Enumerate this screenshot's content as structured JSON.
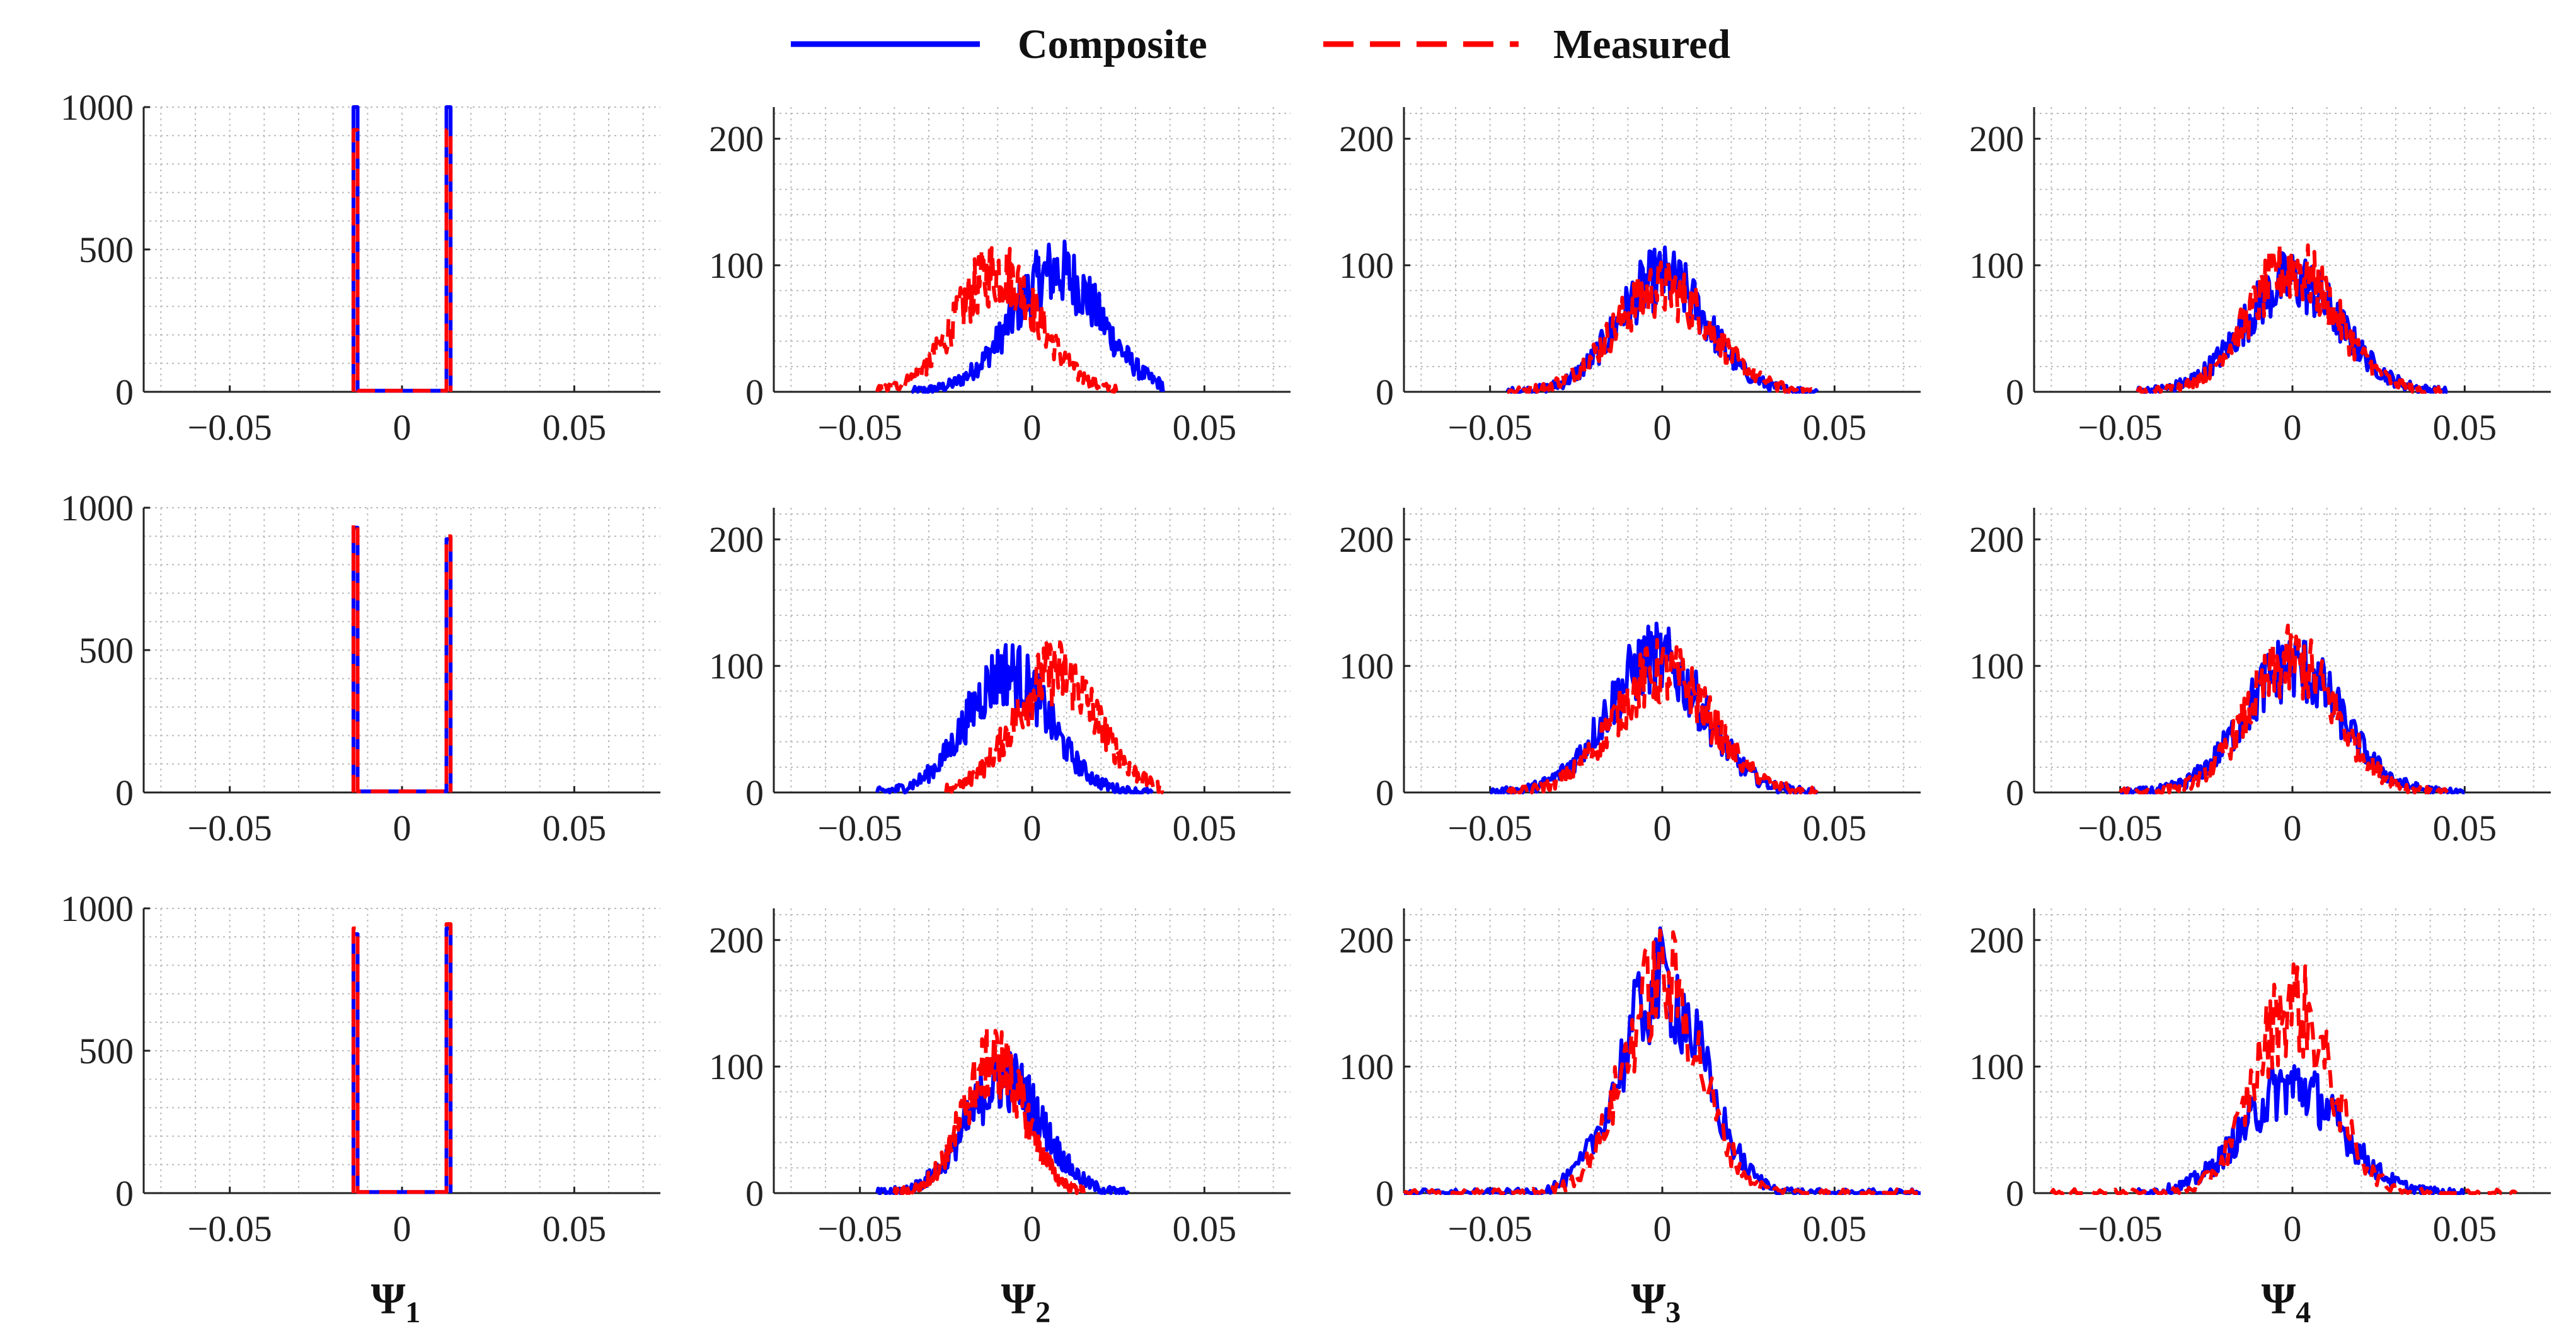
{
  "chart_data": {
    "type": "line",
    "title": "",
    "legend": {
      "placement": "top-center",
      "entries": [
        {
          "name": "Composite",
          "color": "#0000ff",
          "style": "solid"
        },
        {
          "name": "Measured",
          "color": "#ff0000",
          "style": "dashed"
        }
      ]
    },
    "grid": true,
    "xlim": [
      -0.075,
      0.075
    ],
    "xticks": [
      -0.05,
      0,
      0.05
    ],
    "xtick_labels": [
      "−0.05",
      "0",
      "0.05"
    ],
    "columns": [
      {
        "symbol": "Ψ",
        "sub": "1",
        "ylim": [
          0,
          1000
        ],
        "yticks": [
          0,
          500,
          1000
        ],
        "ytick_labels": [
          "0",
          "500",
          "1000"
        ]
      },
      {
        "symbol": "Ψ",
        "sub": "2",
        "ylim": [
          0,
          225
        ],
        "yticks": [
          0,
          100,
          200
        ],
        "ytick_labels": [
          "0",
          "100",
          "200"
        ]
      },
      {
        "symbol": "Ψ",
        "sub": "3",
        "ylim": [
          0,
          225
        ],
        "yticks": [
          0,
          100,
          200
        ],
        "ytick_labels": [
          "0",
          "100",
          "200"
        ]
      },
      {
        "symbol": "Ψ",
        "sub": "4",
        "ylim": [
          0,
          225
        ],
        "yticks": [
          0,
          100,
          200
        ],
        "ytick_labels": [
          "0",
          "100",
          "200"
        ]
      }
    ],
    "panels": [
      {
        "row": 1,
        "col": 1,
        "kind": "spikes",
        "series": [
          {
            "name": "Composite",
            "spikes": [
              [
                -0.0135,
                1000
              ],
              [
                0.0135,
                1000
              ]
            ]
          },
          {
            "name": "Measured",
            "spikes": [
              [
                -0.0135,
                920
              ],
              [
                0.0135,
                920
              ]
            ]
          }
        ]
      },
      {
        "row": 1,
        "col": 2,
        "kind": "gaussian",
        "series": [
          {
            "name": "Composite",
            "mean": 0.007,
            "sd": 0.013,
            "peak": 95,
            "range": [
              -0.035,
              0.038
            ]
          },
          {
            "name": "Measured",
            "mean": -0.01,
            "sd": 0.012,
            "peak": 95,
            "range": [
              -0.045,
              0.025
            ]
          }
        ]
      },
      {
        "row": 1,
        "col": 3,
        "kind": "gaussian",
        "series": [
          {
            "name": "Composite",
            "mean": 0.0,
            "sd": 0.013,
            "peak": 90,
            "range": [
              -0.045,
              0.045
            ]
          },
          {
            "name": "Measured",
            "mean": 0.0,
            "sd": 0.014,
            "peak": 82,
            "range": [
              -0.045,
              0.045
            ]
          }
        ]
      },
      {
        "row": 1,
        "col": 4,
        "kind": "gaussian",
        "series": [
          {
            "name": "Composite",
            "mean": 0.0,
            "sd": 0.014,
            "peak": 88,
            "range": [
              -0.045,
              0.045
            ]
          },
          {
            "name": "Measured",
            "mean": 0.0,
            "sd": 0.013,
            "peak": 97,
            "range": [
              -0.045,
              0.045
            ]
          }
        ]
      },
      {
        "row": 2,
        "col": 1,
        "kind": "spikes",
        "series": [
          {
            "name": "Composite",
            "spikes": [
              [
                -0.0135,
                930
              ],
              [
                0.0135,
                890
              ]
            ]
          },
          {
            "name": "Measured",
            "spikes": [
              [
                -0.0135,
                945
              ],
              [
                0.0135,
                900
              ]
            ]
          }
        ]
      },
      {
        "row": 2,
        "col": 2,
        "kind": "gaussian",
        "series": [
          {
            "name": "Composite",
            "mean": -0.007,
            "sd": 0.012,
            "peak": 95,
            "range": [
              -0.045,
              0.035
            ]
          },
          {
            "name": "Measured",
            "mean": 0.007,
            "sd": 0.012,
            "peak": 95,
            "range": [
              -0.025,
              0.038
            ]
          }
        ]
      },
      {
        "row": 2,
        "col": 3,
        "kind": "gaussian",
        "series": [
          {
            "name": "Composite",
            "mean": -0.002,
            "sd": 0.014,
            "peak": 105,
            "range": [
              -0.05,
              0.045
            ]
          },
          {
            "name": "Measured",
            "mean": 0.0,
            "sd": 0.014,
            "peak": 95,
            "range": [
              -0.045,
              0.045
            ]
          }
        ]
      },
      {
        "row": 2,
        "col": 4,
        "kind": "gaussian",
        "series": [
          {
            "name": "Composite",
            "mean": 0.0,
            "sd": 0.014,
            "peak": 100,
            "range": [
              -0.05,
              0.05
            ]
          },
          {
            "name": "Measured",
            "mean": 0.0,
            "sd": 0.013,
            "peak": 103,
            "range": [
              -0.05,
              0.045
            ]
          }
        ]
      },
      {
        "row": 3,
        "col": 1,
        "kind": "spikes",
        "series": [
          {
            "name": "Composite",
            "spikes": [
              [
                -0.0135,
                910
              ],
              [
                0.0135,
                930
              ]
            ]
          },
          {
            "name": "Measured",
            "spikes": [
              [
                -0.0135,
                930
              ],
              [
                0.0135,
                945
              ]
            ]
          }
        ]
      },
      {
        "row": 3,
        "col": 2,
        "kind": "gaussian",
        "series": [
          {
            "name": "Composite",
            "mean": -0.008,
            "sd": 0.011,
            "peak": 90,
            "range": [
              -0.045,
              0.028
            ]
          },
          {
            "name": "Measured",
            "mean": -0.011,
            "sd": 0.009,
            "peak": 105,
            "range": [
              -0.04,
              0.015
            ]
          }
        ]
      },
      {
        "row": 3,
        "col": 3,
        "kind": "gaussian",
        "series": [
          {
            "name": "Composite",
            "mean": 0.0,
            "sd": 0.012,
            "peak": 165,
            "range": [
              -0.075,
              0.075
            ]
          },
          {
            "name": "Measured",
            "mean": 0.0,
            "sd": 0.011,
            "peak": 170,
            "range": [
              -0.075,
              0.075
            ]
          }
        ]
      },
      {
        "row": 3,
        "col": 4,
        "kind": "gaussian",
        "series": [
          {
            "name": "Composite",
            "mean": 0.0,
            "sd": 0.014,
            "peak": 85,
            "range": [
              -0.045,
              0.05
            ]
          },
          {
            "name": "Measured",
            "mean": 0.0,
            "sd": 0.011,
            "peak": 150,
            "range": [
              -0.07,
              0.065
            ]
          }
        ]
      }
    ]
  }
}
